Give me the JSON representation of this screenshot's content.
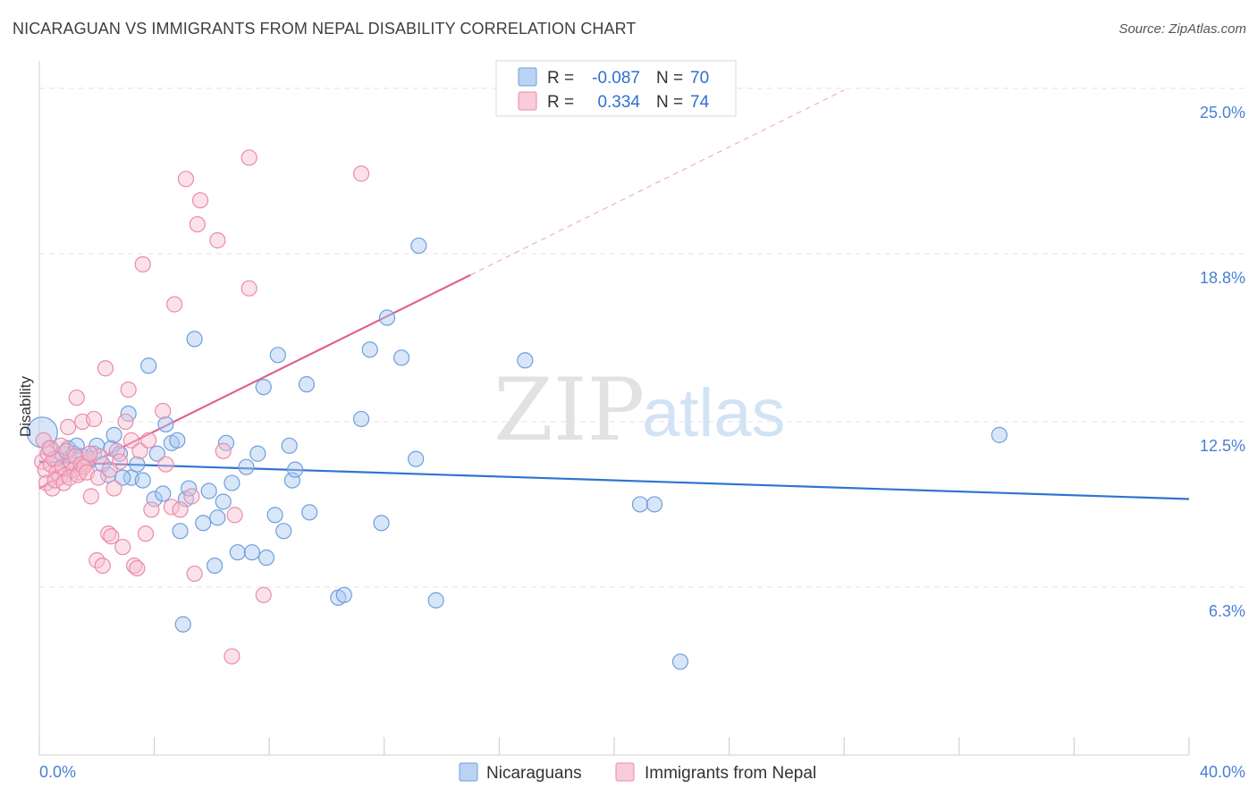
{
  "title": "NICARAGUAN VS IMMIGRANTS FROM NEPAL DISABILITY CORRELATION CHART",
  "source": "Source: ZipAtlas.com",
  "watermark": {
    "zip": "ZIP",
    "atlas": "atlas"
  },
  "colors": {
    "blue_fill": "#a9c8ef",
    "blue_stroke": "#6e9fde",
    "blue_line": "#2f74d0",
    "pink_fill": "#f6bfd0",
    "pink_stroke": "#ec8aa8",
    "pink_line": "#e0608c",
    "grid": "#e3e3e3",
    "axis_label": "#4a7fd4"
  },
  "legend": {
    "rows": [
      {
        "r_label": "R =",
        "r_value": "-0.087",
        "n_label": "N =",
        "n_value": "70"
      },
      {
        "r_label": "R =",
        "r_value": "0.334",
        "n_label": "N =",
        "n_value": "74"
      }
    ]
  },
  "bottom_legend": [
    "Nicaraguans",
    "Immigrants from Nepal"
  ],
  "chart_data": {
    "type": "scatter",
    "title": "NICARAGUAN VS IMMIGRANTS FROM NEPAL DISABILITY CORRELATION CHART",
    "xlabel": "",
    "ylabel": "Disability",
    "xlim": [
      0,
      40
    ],
    "ylim": [
      0,
      25.9
    ],
    "x_tick_labels": [
      "0.0%",
      "40.0%"
    ],
    "y_ticks": [
      6.3,
      12.5,
      18.8,
      25.0
    ],
    "y_tick_labels": [
      "6.3%",
      "12.5%",
      "18.8%",
      "25.0%"
    ],
    "grid": true,
    "legend_position": "top-center",
    "series": [
      {
        "name": "Nicaraguans",
        "color": "#6e9fde",
        "trend": {
          "x": [
            0,
            40
          ],
          "y": [
            11.0,
            9.6
          ]
        },
        "points": [
          [
            0.1,
            12.1
          ],
          [
            0.4,
            11.5
          ],
          [
            0.6,
            11.1
          ],
          [
            0.8,
            11.3
          ],
          [
            1.0,
            11.5
          ],
          [
            1.2,
            11.3
          ],
          [
            1.3,
            11.6
          ],
          [
            1.5,
            11.2
          ],
          [
            1.7,
            11.0
          ],
          [
            1.9,
            11.3
          ],
          [
            2.0,
            11.6
          ],
          [
            2.2,
            10.9
          ],
          [
            2.4,
            10.5
          ],
          [
            2.5,
            11.5
          ],
          [
            2.6,
            12.0
          ],
          [
            2.8,
            11.3
          ],
          [
            3.1,
            12.8
          ],
          [
            3.2,
            10.4
          ],
          [
            3.4,
            10.9
          ],
          [
            3.6,
            10.3
          ],
          [
            3.8,
            14.6
          ],
          [
            4.0,
            9.6
          ],
          [
            4.1,
            11.3
          ],
          [
            4.3,
            9.8
          ],
          [
            4.4,
            12.4
          ],
          [
            4.6,
            11.7
          ],
          [
            4.8,
            11.8
          ],
          [
            4.9,
            8.4
          ],
          [
            5.1,
            9.6
          ],
          [
            5.2,
            10.0
          ],
          [
            5.4,
            15.6
          ],
          [
            5.7,
            8.7
          ],
          [
            5.9,
            9.9
          ],
          [
            6.1,
            7.1
          ],
          [
            6.2,
            8.9
          ],
          [
            6.4,
            9.5
          ],
          [
            6.5,
            11.7
          ],
          [
            6.7,
            10.2
          ],
          [
            6.9,
            7.6
          ],
          [
            7.2,
            10.8
          ],
          [
            7.4,
            7.6
          ],
          [
            7.6,
            11.3
          ],
          [
            7.8,
            13.8
          ],
          [
            7.9,
            7.4
          ],
          [
            8.2,
            9.0
          ],
          [
            8.3,
            15.0
          ],
          [
            8.5,
            8.4
          ],
          [
            8.7,
            11.6
          ],
          [
            8.8,
            10.3
          ],
          [
            8.9,
            10.7
          ],
          [
            9.3,
            13.9
          ],
          [
            9.4,
            9.1
          ],
          [
            10.4,
            5.9
          ],
          [
            10.6,
            6.0
          ],
          [
            11.2,
            12.6
          ],
          [
            11.5,
            15.2
          ],
          [
            11.9,
            8.7
          ],
          [
            12.1,
            16.4
          ],
          [
            12.6,
            14.9
          ],
          [
            13.1,
            11.1
          ],
          [
            13.2,
            19.1
          ],
          [
            13.8,
            5.8
          ],
          [
            16.9,
            14.8
          ],
          [
            20.9,
            9.4
          ],
          [
            21.4,
            9.4
          ],
          [
            22.3,
            3.5
          ],
          [
            2.9,
            10.4
          ],
          [
            1.1,
            10.9
          ],
          [
            5.0,
            4.9
          ],
          [
            33.4,
            12.0
          ]
        ]
      },
      {
        "name": "Immigrants from Nepal",
        "color": "#ec8aa8",
        "trend": {
          "x": [
            0,
            15
          ],
          "y": [
            10.0,
            18.0
          ]
        },
        "points": [
          [
            0.1,
            11.0
          ],
          [
            0.2,
            10.7
          ],
          [
            0.3,
            11.3
          ],
          [
            0.4,
            10.9
          ],
          [
            0.5,
            11.1
          ],
          [
            0.6,
            10.6
          ],
          [
            0.7,
            10.4
          ],
          [
            0.8,
            10.8
          ],
          [
            0.9,
            10.5
          ],
          [
            1.0,
            12.3
          ],
          [
            1.1,
            11.0
          ],
          [
            1.2,
            10.7
          ],
          [
            1.3,
            13.4
          ],
          [
            1.4,
            10.6
          ],
          [
            1.5,
            12.5
          ],
          [
            1.6,
            10.9
          ],
          [
            1.7,
            11.1
          ],
          [
            1.8,
            9.7
          ],
          [
            1.9,
            12.6
          ],
          [
            2.0,
            7.3
          ],
          [
            2.1,
            11.2
          ],
          [
            2.2,
            7.1
          ],
          [
            2.3,
            14.5
          ],
          [
            2.4,
            8.3
          ],
          [
            2.5,
            8.2
          ],
          [
            2.6,
            10.0
          ],
          [
            2.7,
            11.4
          ],
          [
            2.8,
            11.0
          ],
          [
            2.9,
            7.8
          ],
          [
            3.0,
            12.5
          ],
          [
            3.1,
            13.7
          ],
          [
            3.2,
            11.8
          ],
          [
            3.3,
            7.1
          ],
          [
            3.4,
            7.0
          ],
          [
            3.5,
            11.4
          ],
          [
            3.6,
            18.4
          ],
          [
            3.7,
            8.3
          ],
          [
            3.8,
            11.8
          ],
          [
            3.9,
            9.2
          ],
          [
            4.3,
            12.9
          ],
          [
            4.4,
            10.9
          ],
          [
            4.6,
            9.3
          ],
          [
            4.7,
            16.9
          ],
          [
            4.9,
            9.2
          ],
          [
            5.1,
            21.6
          ],
          [
            5.3,
            9.7
          ],
          [
            5.4,
            6.8
          ],
          [
            5.5,
            19.9
          ],
          [
            5.6,
            20.8
          ],
          [
            6.2,
            19.3
          ],
          [
            6.4,
            11.4
          ],
          [
            6.7,
            3.7
          ],
          [
            6.8,
            9.0
          ],
          [
            7.3,
            17.5
          ],
          [
            7.3,
            22.4
          ],
          [
            7.8,
            6.0
          ],
          [
            11.2,
            21.8
          ],
          [
            0.15,
            11.8
          ],
          [
            0.25,
            10.2
          ],
          [
            0.35,
            11.5
          ],
          [
            0.45,
            10.0
          ],
          [
            0.55,
            10.3
          ],
          [
            0.75,
            11.6
          ],
          [
            0.85,
            10.2
          ],
          [
            0.95,
            11.4
          ],
          [
            1.05,
            10.4
          ],
          [
            1.25,
            11.2
          ],
          [
            1.35,
            10.5
          ],
          [
            1.45,
            10.9
          ],
          [
            1.55,
            10.8
          ],
          [
            1.65,
            10.6
          ],
          [
            1.75,
            11.3
          ],
          [
            2.05,
            10.4
          ],
          [
            2.45,
            10.7
          ]
        ]
      }
    ]
  }
}
